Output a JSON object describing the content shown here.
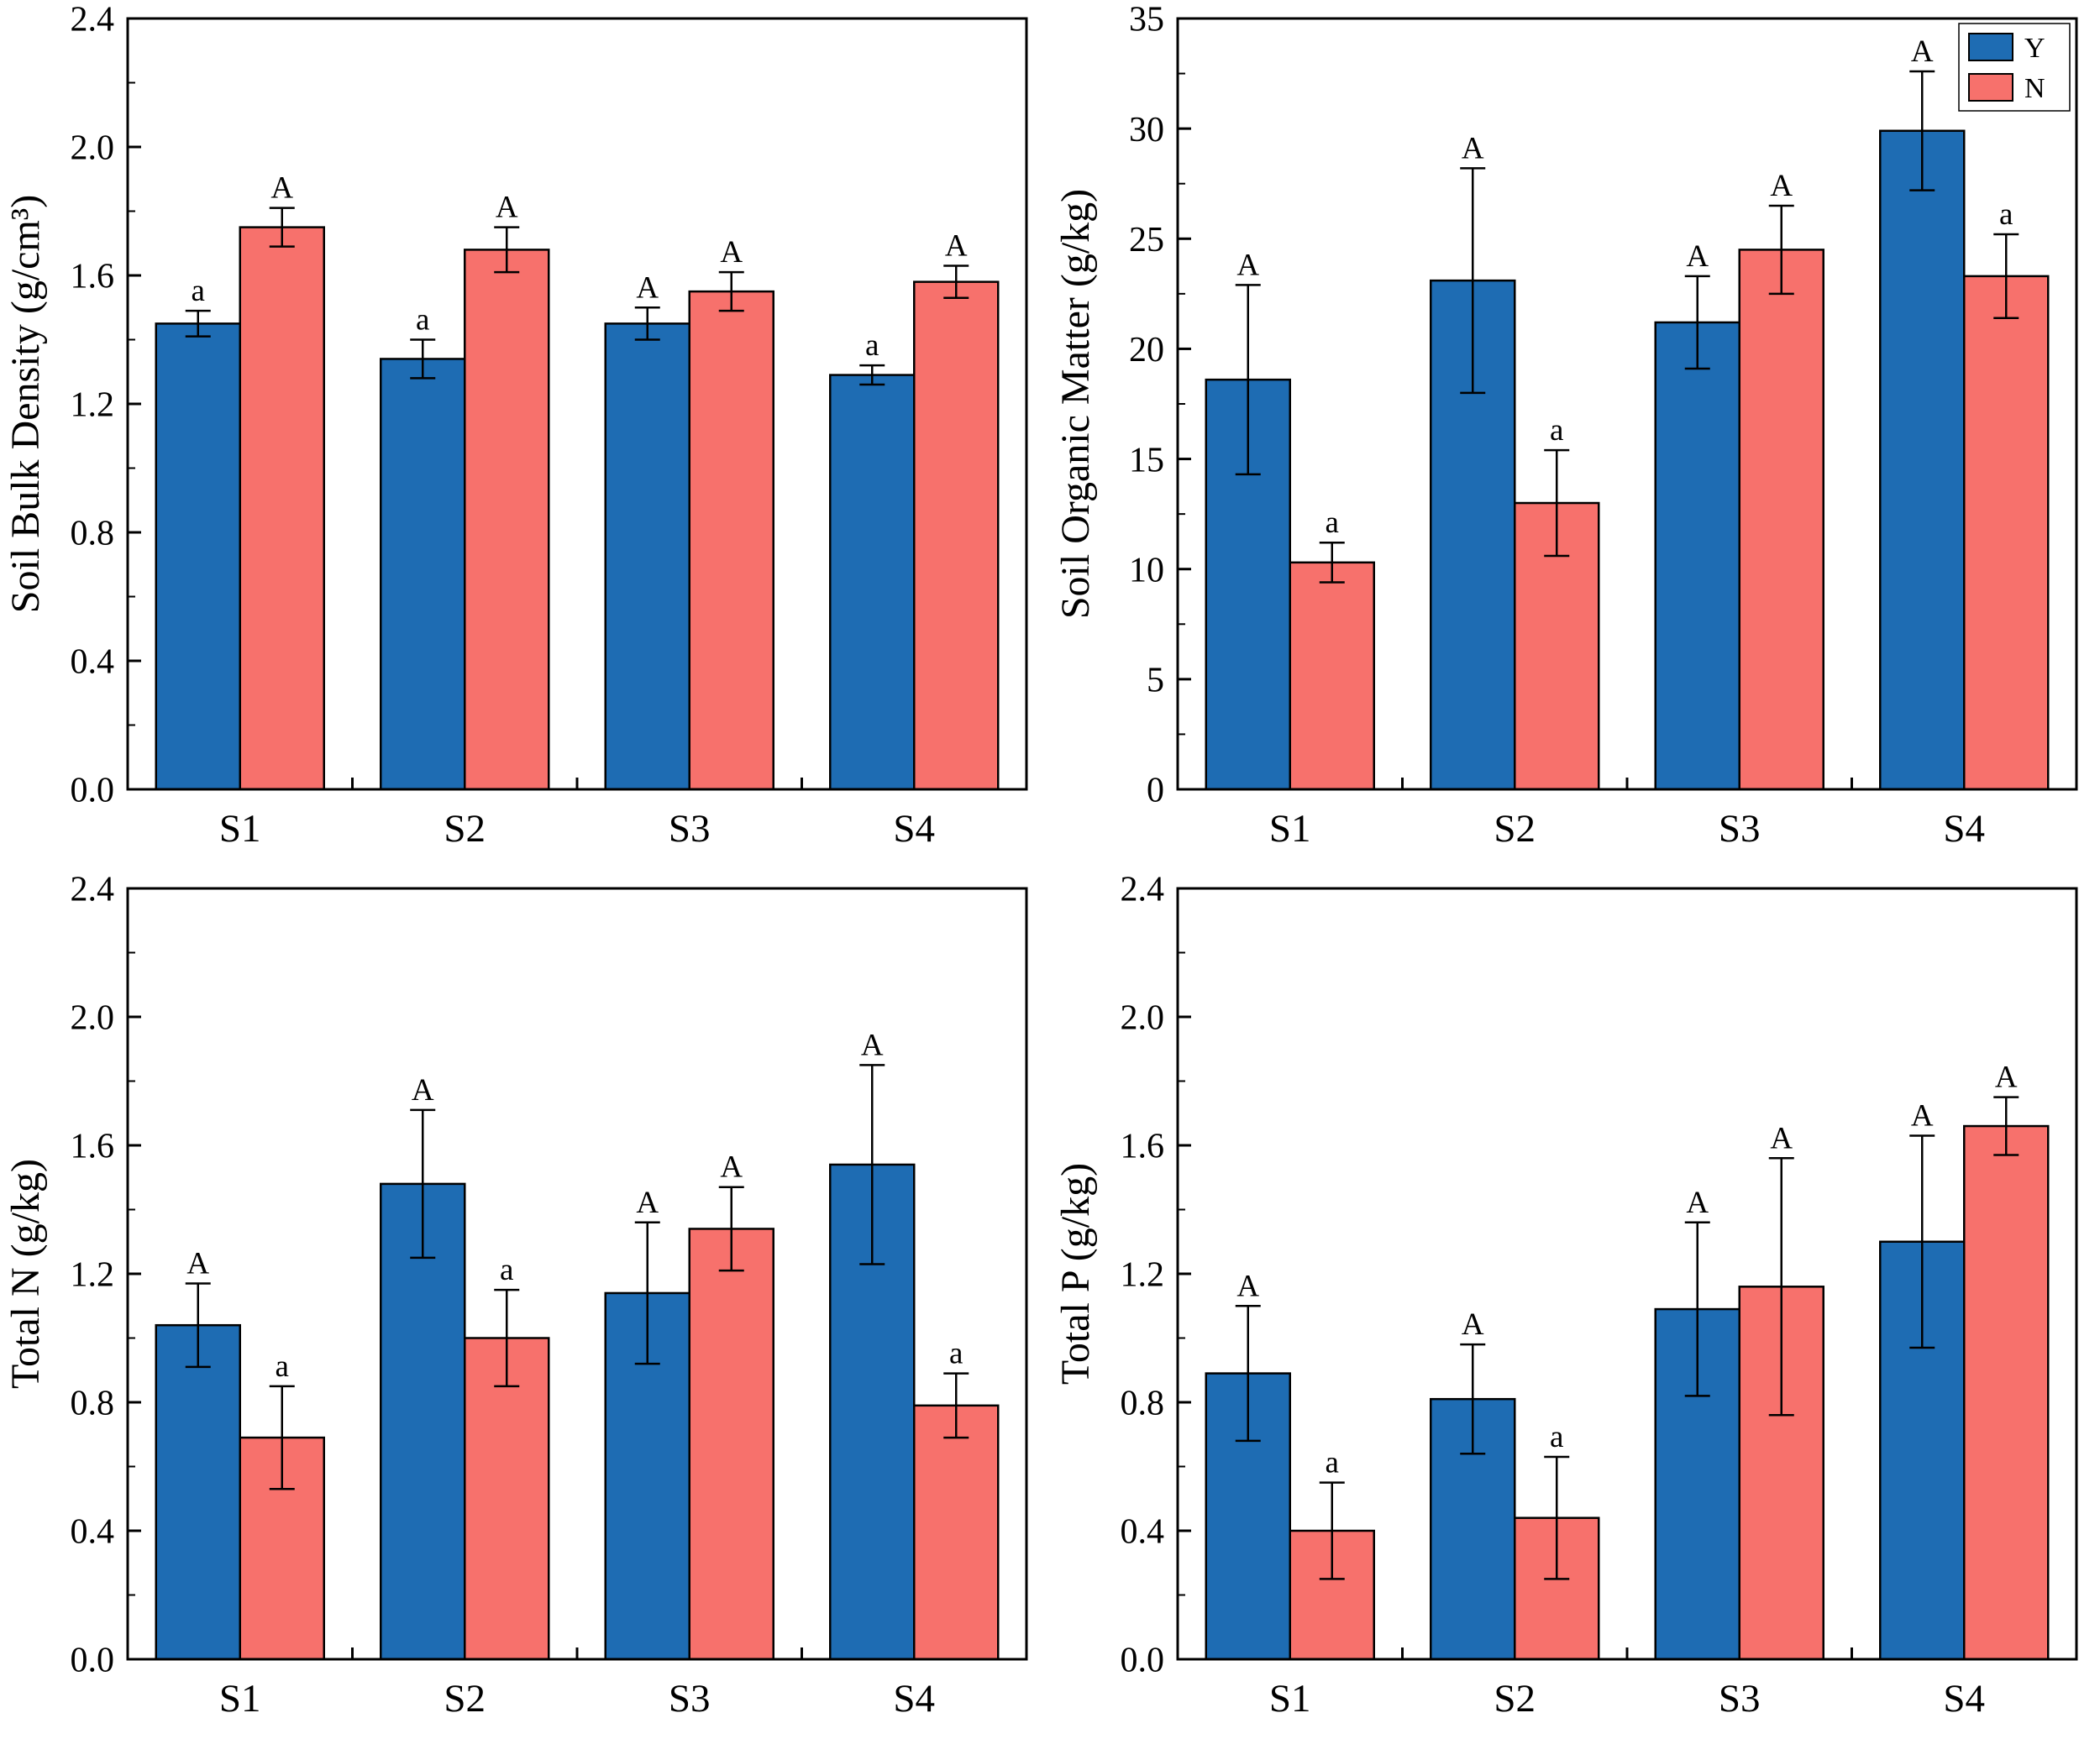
{
  "page": {
    "background": "#ffffff",
    "bar_edge_color": "#000000",
    "axis_color": "#000000"
  },
  "legend": {
    "items": [
      {
        "label": "Y",
        "color": "#1e6cb3"
      },
      {
        "label": "N",
        "color": "#f7716c"
      }
    ],
    "position": "top-right",
    "shown_on_panel": "soil-organic-matter"
  },
  "chart_data": [
    {
      "id": "soil-bulk-density",
      "type": "bar",
      "title": "",
      "xlabel": "",
      "ylabel": "Soil Bulk Density (g/cm³)",
      "categories": [
        "S1",
        "S2",
        "S3",
        "S4"
      ],
      "ylim": [
        0,
        2.4
      ],
      "ytick_step": 0.4,
      "ytick_decimals": 1,
      "yticks": [
        "0.0",
        "0.4",
        "0.8",
        "1.2",
        "1.6",
        "2.0",
        "2.4"
      ],
      "grid": false,
      "legend": false,
      "series": [
        {
          "name": "Y",
          "color": "#1e6cb3",
          "values": [
            1.45,
            1.34,
            1.45,
            1.29
          ],
          "errors": [
            0.04,
            0.06,
            0.05,
            0.03
          ],
          "letters": [
            "a",
            "a",
            "A",
            "a"
          ]
        },
        {
          "name": "N",
          "color": "#f7716c",
          "values": [
            1.75,
            1.68,
            1.55,
            1.58
          ],
          "errors": [
            0.06,
            0.07,
            0.06,
            0.05
          ],
          "letters": [
            "A",
            "A",
            "A",
            "A"
          ]
        }
      ]
    },
    {
      "id": "soil-organic-matter",
      "type": "bar",
      "title": "",
      "xlabel": "",
      "ylabel": "Soil Organic Matter (g/kg)",
      "categories": [
        "S1",
        "S2",
        "S3",
        "S4"
      ],
      "ylim": [
        0,
        35
      ],
      "ytick_step": 5,
      "ytick_decimals": 0,
      "yticks": [
        "0",
        "5",
        "10",
        "15",
        "20",
        "25",
        "30",
        "35"
      ],
      "grid": false,
      "legend": true,
      "series": [
        {
          "name": "Y",
          "color": "#1e6cb3",
          "values": [
            18.6,
            23.1,
            21.2,
            29.9
          ],
          "errors": [
            4.3,
            5.1,
            2.1,
            2.7
          ],
          "letters": [
            "A",
            "A",
            "A",
            "A"
          ]
        },
        {
          "name": "N",
          "color": "#f7716c",
          "values": [
            10.3,
            13.0,
            24.5,
            23.3
          ],
          "errors": [
            0.9,
            2.4,
            2.0,
            1.9
          ],
          "letters": [
            "a",
            "a",
            "A",
            "a"
          ]
        }
      ]
    },
    {
      "id": "total-n",
      "type": "bar",
      "title": "",
      "xlabel": "",
      "ylabel": "Total N  (g/kg)",
      "categories": [
        "S1",
        "S2",
        "S3",
        "S4"
      ],
      "ylim": [
        0,
        2.4
      ],
      "ytick_step": 0.4,
      "ytick_decimals": 1,
      "yticks": [
        "0.0",
        "0.4",
        "0.8",
        "1.2",
        "1.6",
        "2.0",
        "2.4"
      ],
      "grid": false,
      "legend": false,
      "series": [
        {
          "name": "Y",
          "color": "#1e6cb3",
          "values": [
            1.04,
            1.48,
            1.14,
            1.54
          ],
          "errors": [
            0.13,
            0.23,
            0.22,
            0.31
          ],
          "letters": [
            "A",
            "A",
            "A",
            "A"
          ]
        },
        {
          "name": "N",
          "color": "#f7716c",
          "values": [
            0.69,
            1.0,
            1.34,
            0.79
          ],
          "errors": [
            0.16,
            0.15,
            0.13,
            0.1
          ],
          "letters": [
            "a",
            "a",
            "A",
            "a"
          ]
        }
      ]
    },
    {
      "id": "total-p",
      "type": "bar",
      "title": "",
      "xlabel": "",
      "ylabel": "Total P (g/kg)",
      "categories": [
        "S1",
        "S2",
        "S3",
        "S4"
      ],
      "ylim": [
        0,
        2.4
      ],
      "ytick_step": 0.4,
      "ytick_decimals": 1,
      "yticks": [
        "0.0",
        "0.4",
        "0.8",
        "1.2",
        "1.6",
        "2.0",
        "2.4"
      ],
      "grid": false,
      "legend": false,
      "series": [
        {
          "name": "Y",
          "color": "#1e6cb3",
          "values": [
            0.89,
            0.81,
            1.09,
            1.3
          ],
          "errors": [
            0.21,
            0.17,
            0.27,
            0.33
          ],
          "letters": [
            "A",
            "A",
            "A",
            "A"
          ]
        },
        {
          "name": "N",
          "color": "#f7716c",
          "values": [
            0.4,
            0.44,
            1.16,
            1.66
          ],
          "errors": [
            0.15,
            0.19,
            0.4,
            0.09
          ],
          "letters": [
            "a",
            "a",
            "A",
            "A"
          ]
        }
      ]
    }
  ]
}
